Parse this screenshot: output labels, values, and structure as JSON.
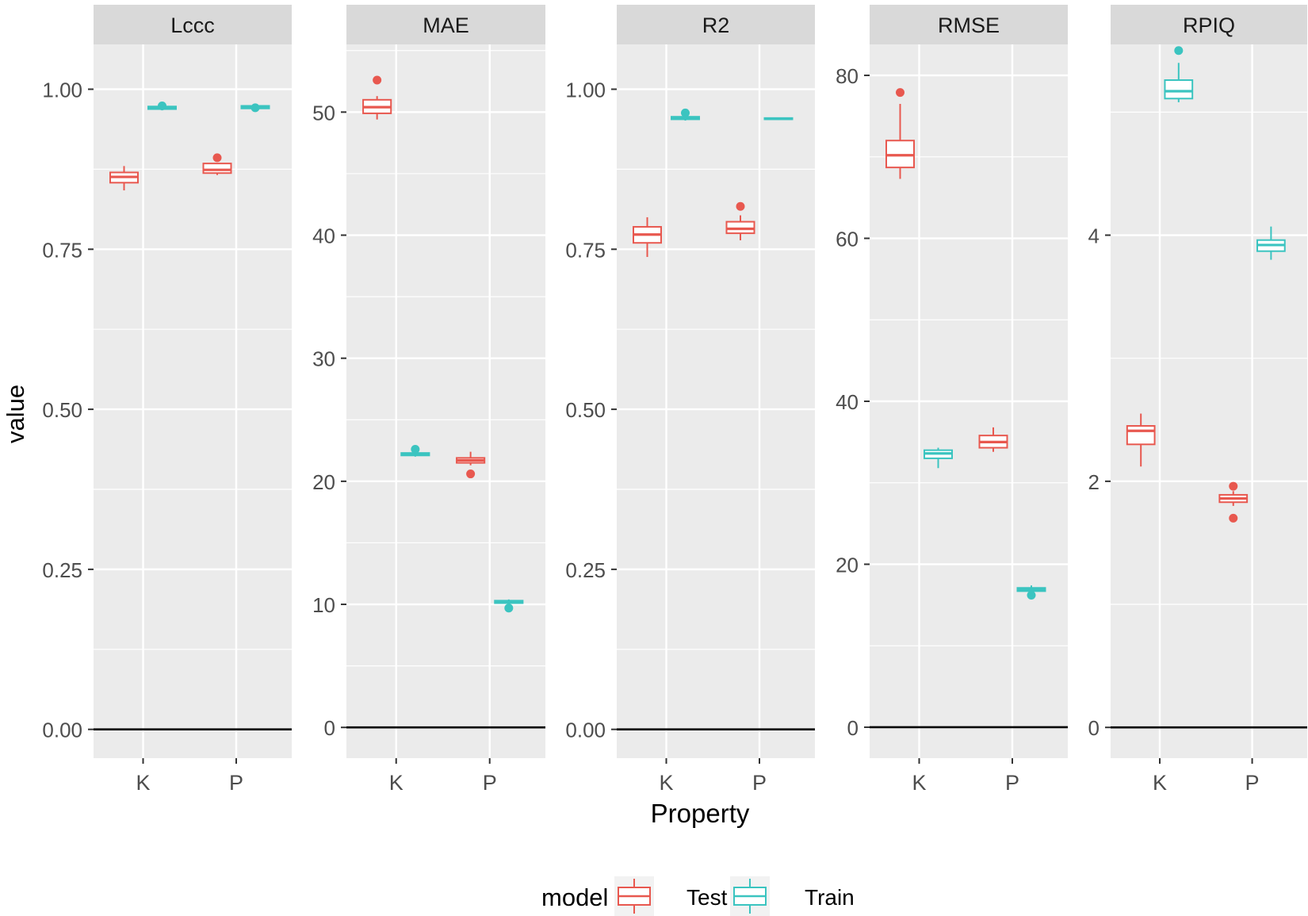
{
  "chart_data": {
    "type": "box",
    "xlabel": "Property",
    "ylabel": "value",
    "categories": [
      "K",
      "P"
    ],
    "legend": {
      "title": "model",
      "position": "bottom",
      "entries": [
        {
          "name": "Test",
          "color": "#F8766D"
        },
        {
          "name": "Train",
          "color": "#00BFC4"
        }
      ]
    },
    "colors": {
      "Test": "#E8584F",
      "Train": "#3BC4C0",
      "panel": "#EBEBEB",
      "strip": "#D9D9D9",
      "grid": "#FFFFFF"
    },
    "panels": [
      {
        "name": "Lccc",
        "ylim": [
          -0.045,
          1.07
        ],
        "ticks": [
          0,
          0.25,
          0.5,
          0.75,
          1.0
        ],
        "tick_labels": [
          "0.00",
          "0.25",
          "0.50",
          "0.75",
          "1.00"
        ],
        "boxes": [
          {
            "category": "K",
            "model": "Test",
            "min": 0.842,
            "q1": 0.854,
            "median": 0.863,
            "q3": 0.87,
            "max": 0.88,
            "outliers": []
          },
          {
            "category": "K",
            "model": "Train",
            "min": 0.967,
            "q1": 0.969,
            "median": 0.971,
            "q3": 0.973,
            "max": 0.975,
            "outliers": [
              0.974
            ]
          },
          {
            "category": "P",
            "model": "Test",
            "min": 0.866,
            "q1": 0.869,
            "median": 0.874,
            "q3": 0.884,
            "max": 0.884,
            "outliers": [
              0.893
            ]
          },
          {
            "category": "P",
            "model": "Train",
            "min": 0.968,
            "q1": 0.97,
            "median": 0.972,
            "q3": 0.974,
            "max": 0.975,
            "outliers": [
              0.971
            ]
          }
        ]
      },
      {
        "name": "MAE",
        "ylim": [
          -2.5,
          55.5
        ],
        "ticks": [
          0,
          10,
          20,
          30,
          40,
          50
        ],
        "tick_labels": [
          "0",
          "10",
          "20",
          "30",
          "40",
          "50"
        ],
        "boxes": [
          {
            "category": "K",
            "model": "Test",
            "min": 49.4,
            "q1": 49.9,
            "median": 50.4,
            "q3": 51.0,
            "max": 51.3,
            "outliers": [
              52.6
            ]
          },
          {
            "category": "K",
            "model": "Train",
            "min": 22.0,
            "q1": 22.1,
            "median": 22.2,
            "q3": 22.3,
            "max": 22.4,
            "outliers": [
              22.6
            ]
          },
          {
            "category": "P",
            "model": "Test",
            "min": 21.3,
            "q1": 21.5,
            "median": 21.7,
            "q3": 21.9,
            "max": 22.4,
            "outliers": [
              20.6
            ]
          },
          {
            "category": "P",
            "model": "Train",
            "min": 10.0,
            "q1": 10.1,
            "median": 10.2,
            "q3": 10.3,
            "max": 10.4,
            "outliers": [
              9.7
            ]
          }
        ]
      },
      {
        "name": "R2",
        "ylim": [
          -0.045,
          1.07
        ],
        "ticks": [
          0,
          0.25,
          0.5,
          0.75,
          1.0
        ],
        "tick_labels": [
          "0.00",
          "0.25",
          "0.50",
          "0.75",
          "1.00"
        ],
        "boxes": [
          {
            "category": "K",
            "model": "Test",
            "min": 0.738,
            "q1": 0.76,
            "median": 0.773,
            "q3": 0.785,
            "max": 0.8,
            "outliers": []
          },
          {
            "category": "K",
            "model": "Train",
            "min": 0.951,
            "q1": 0.953,
            "median": 0.955,
            "q3": 0.957,
            "max": 0.958,
            "outliers": [
              0.963
            ]
          },
          {
            "category": "P",
            "model": "Test",
            "min": 0.764,
            "q1": 0.775,
            "median": 0.782,
            "q3": 0.793,
            "max": 0.803,
            "outliers": [
              0.817
            ]
          },
          {
            "category": "P",
            "model": "Train",
            "min": 0.952,
            "q1": 0.953,
            "median": 0.954,
            "q3": 0.955,
            "max": 0.956,
            "outliers": []
          }
        ]
      },
      {
        "name": "RMSE",
        "ylim": [
          -3.8,
          83.8
        ],
        "ticks": [
          0,
          20,
          40,
          60,
          80
        ],
        "tick_labels": [
          "0",
          "20",
          "40",
          "60",
          "80"
        ],
        "boxes": [
          {
            "category": "K",
            "model": "Test",
            "min": 67.3,
            "q1": 68.7,
            "median": 70.2,
            "q3": 72.0,
            "max": 76.5,
            "outliers": [
              77.9
            ]
          },
          {
            "category": "K",
            "model": "Train",
            "min": 31.8,
            "q1": 33.0,
            "median": 33.6,
            "q3": 34.0,
            "max": 34.3,
            "outliers": []
          },
          {
            "category": "P",
            "model": "Test",
            "min": 33.8,
            "q1": 34.3,
            "median": 35.0,
            "q3": 35.8,
            "max": 36.8,
            "outliers": []
          },
          {
            "category": "P",
            "model": "Train",
            "min": 16.4,
            "q1": 16.7,
            "median": 16.9,
            "q3": 17.1,
            "max": 17.4,
            "outliers": [
              16.2
            ]
          }
        ]
      },
      {
        "name": "RPIQ",
        "ylim": [
          -0.25,
          5.55
        ],
        "ticks": [
          0,
          2,
          4
        ],
        "tick_labels": [
          "0",
          "2",
          "4"
        ],
        "boxes": [
          {
            "category": "K",
            "model": "Test",
            "min": 2.12,
            "q1": 2.3,
            "median": 2.41,
            "q3": 2.45,
            "max": 2.55,
            "outliers": []
          },
          {
            "category": "K",
            "model": "Train",
            "min": 5.08,
            "q1": 5.11,
            "median": 5.17,
            "q3": 5.26,
            "max": 5.4,
            "outliers": [
              5.5
            ]
          },
          {
            "category": "P",
            "model": "Test",
            "min": 1.8,
            "q1": 1.83,
            "median": 1.86,
            "q3": 1.89,
            "max": 1.92,
            "outliers": [
              1.7,
              1.96
            ]
          },
          {
            "category": "P",
            "model": "Train",
            "min": 3.8,
            "q1": 3.87,
            "median": 3.92,
            "q3": 3.96,
            "max": 4.07,
            "outliers": []
          }
        ]
      }
    ]
  }
}
